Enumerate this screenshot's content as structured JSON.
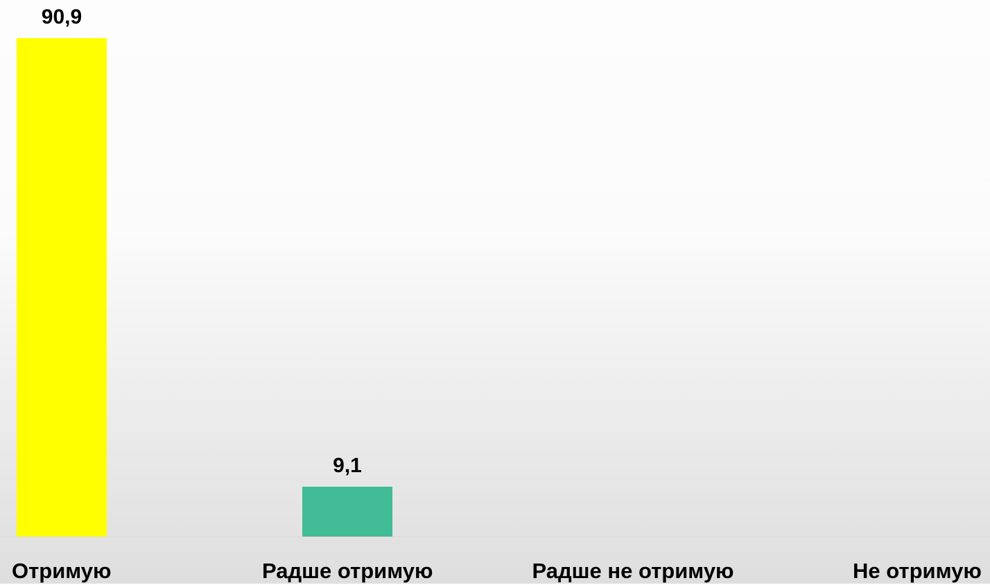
{
  "chart_data": {
    "type": "bar",
    "categories": [
      "Отримую",
      "Радше отримую",
      "Радше не отримую",
      "Не отримую"
    ],
    "values": [
      90.9,
      9.1,
      0,
      0
    ],
    "value_labels": [
      "90,9",
      "9,1",
      "",
      ""
    ],
    "colors": [
      "#ffff00",
      "#42bb97",
      "#42bb97",
      "#42bb97"
    ],
    "ylim": [
      0,
      90.9
    ],
    "grid": false,
    "legend": "none"
  }
}
